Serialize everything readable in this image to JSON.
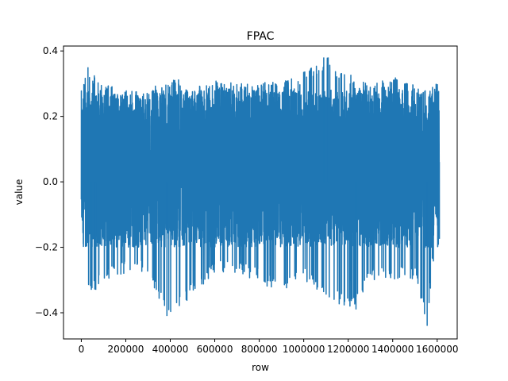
{
  "chart_data": {
    "type": "line",
    "title": "FPAC",
    "xlabel": "row",
    "ylabel": "value",
    "xlim": [
      -80000,
      1690000
    ],
    "ylim": [
      -0.48,
      0.415
    ],
    "x_ticks": [
      0,
      200000,
      400000,
      600000,
      800000,
      1000000,
      1200000,
      1400000,
      1600000
    ],
    "x_tick_labels": [
      "0",
      "200000",
      "400000",
      "600000",
      "800000",
      "1000000",
      "1200000",
      "1400000",
      "1600000"
    ],
    "y_ticks": [
      -0.4,
      -0.2,
      0.0,
      0.2,
      0.4
    ],
    "y_tick_labels": [
      "−0.4",
      "−0.2",
      "0.0",
      "0.2",
      "0.4"
    ],
    "grid": false,
    "legend": "none",
    "series": [
      {
        "color": "#1f77b4",
        "x_range": [
          0,
          1610000
        ],
        "typical_band": [
          -0.2,
          0.28
        ],
        "envelope_upper": [
          [
            0,
            0.3
          ],
          [
            30000,
            0.35
          ],
          [
            100000,
            0.3
          ],
          [
            200000,
            0.28
          ],
          [
            300000,
            0.27
          ],
          [
            380000,
            0.33
          ],
          [
            500000,
            0.3
          ],
          [
            600000,
            0.31
          ],
          [
            700000,
            0.3
          ],
          [
            800000,
            0.3
          ],
          [
            950000,
            0.32
          ],
          [
            1080000,
            0.37
          ],
          [
            1110000,
            0.38
          ],
          [
            1200000,
            0.33
          ],
          [
            1300000,
            0.3
          ],
          [
            1400000,
            0.32
          ],
          [
            1500000,
            0.31
          ],
          [
            1560000,
            0.28
          ],
          [
            1610000,
            0.31
          ]
        ],
        "envelope_lower": [
          [
            0,
            -0.18
          ],
          [
            30000,
            -0.33
          ],
          [
            60000,
            -0.33
          ],
          [
            100000,
            -0.3
          ],
          [
            200000,
            -0.28
          ],
          [
            300000,
            -0.28
          ],
          [
            385000,
            -0.41
          ],
          [
            480000,
            -0.36
          ],
          [
            600000,
            -0.28
          ],
          [
            700000,
            -0.28
          ],
          [
            780000,
            -0.3
          ],
          [
            900000,
            -0.34
          ],
          [
            1000000,
            -0.3
          ],
          [
            1100000,
            -0.36
          ],
          [
            1230000,
            -0.39
          ],
          [
            1300000,
            -0.3
          ],
          [
            1400000,
            -0.3
          ],
          [
            1500000,
            -0.3
          ],
          [
            1555000,
            -0.44
          ],
          [
            1580000,
            -0.25
          ],
          [
            1610000,
            -0.18
          ]
        ],
        "spikes": [
          [
            30000,
            0.35
          ],
          [
            45000,
            -0.33
          ],
          [
            65000,
            -0.33
          ],
          [
            385000,
            -0.41
          ],
          [
            1090000,
            0.38
          ],
          [
            1110000,
            0.38
          ],
          [
            1235000,
            -0.39
          ],
          [
            1555000,
            -0.44
          ]
        ]
      }
    ]
  }
}
